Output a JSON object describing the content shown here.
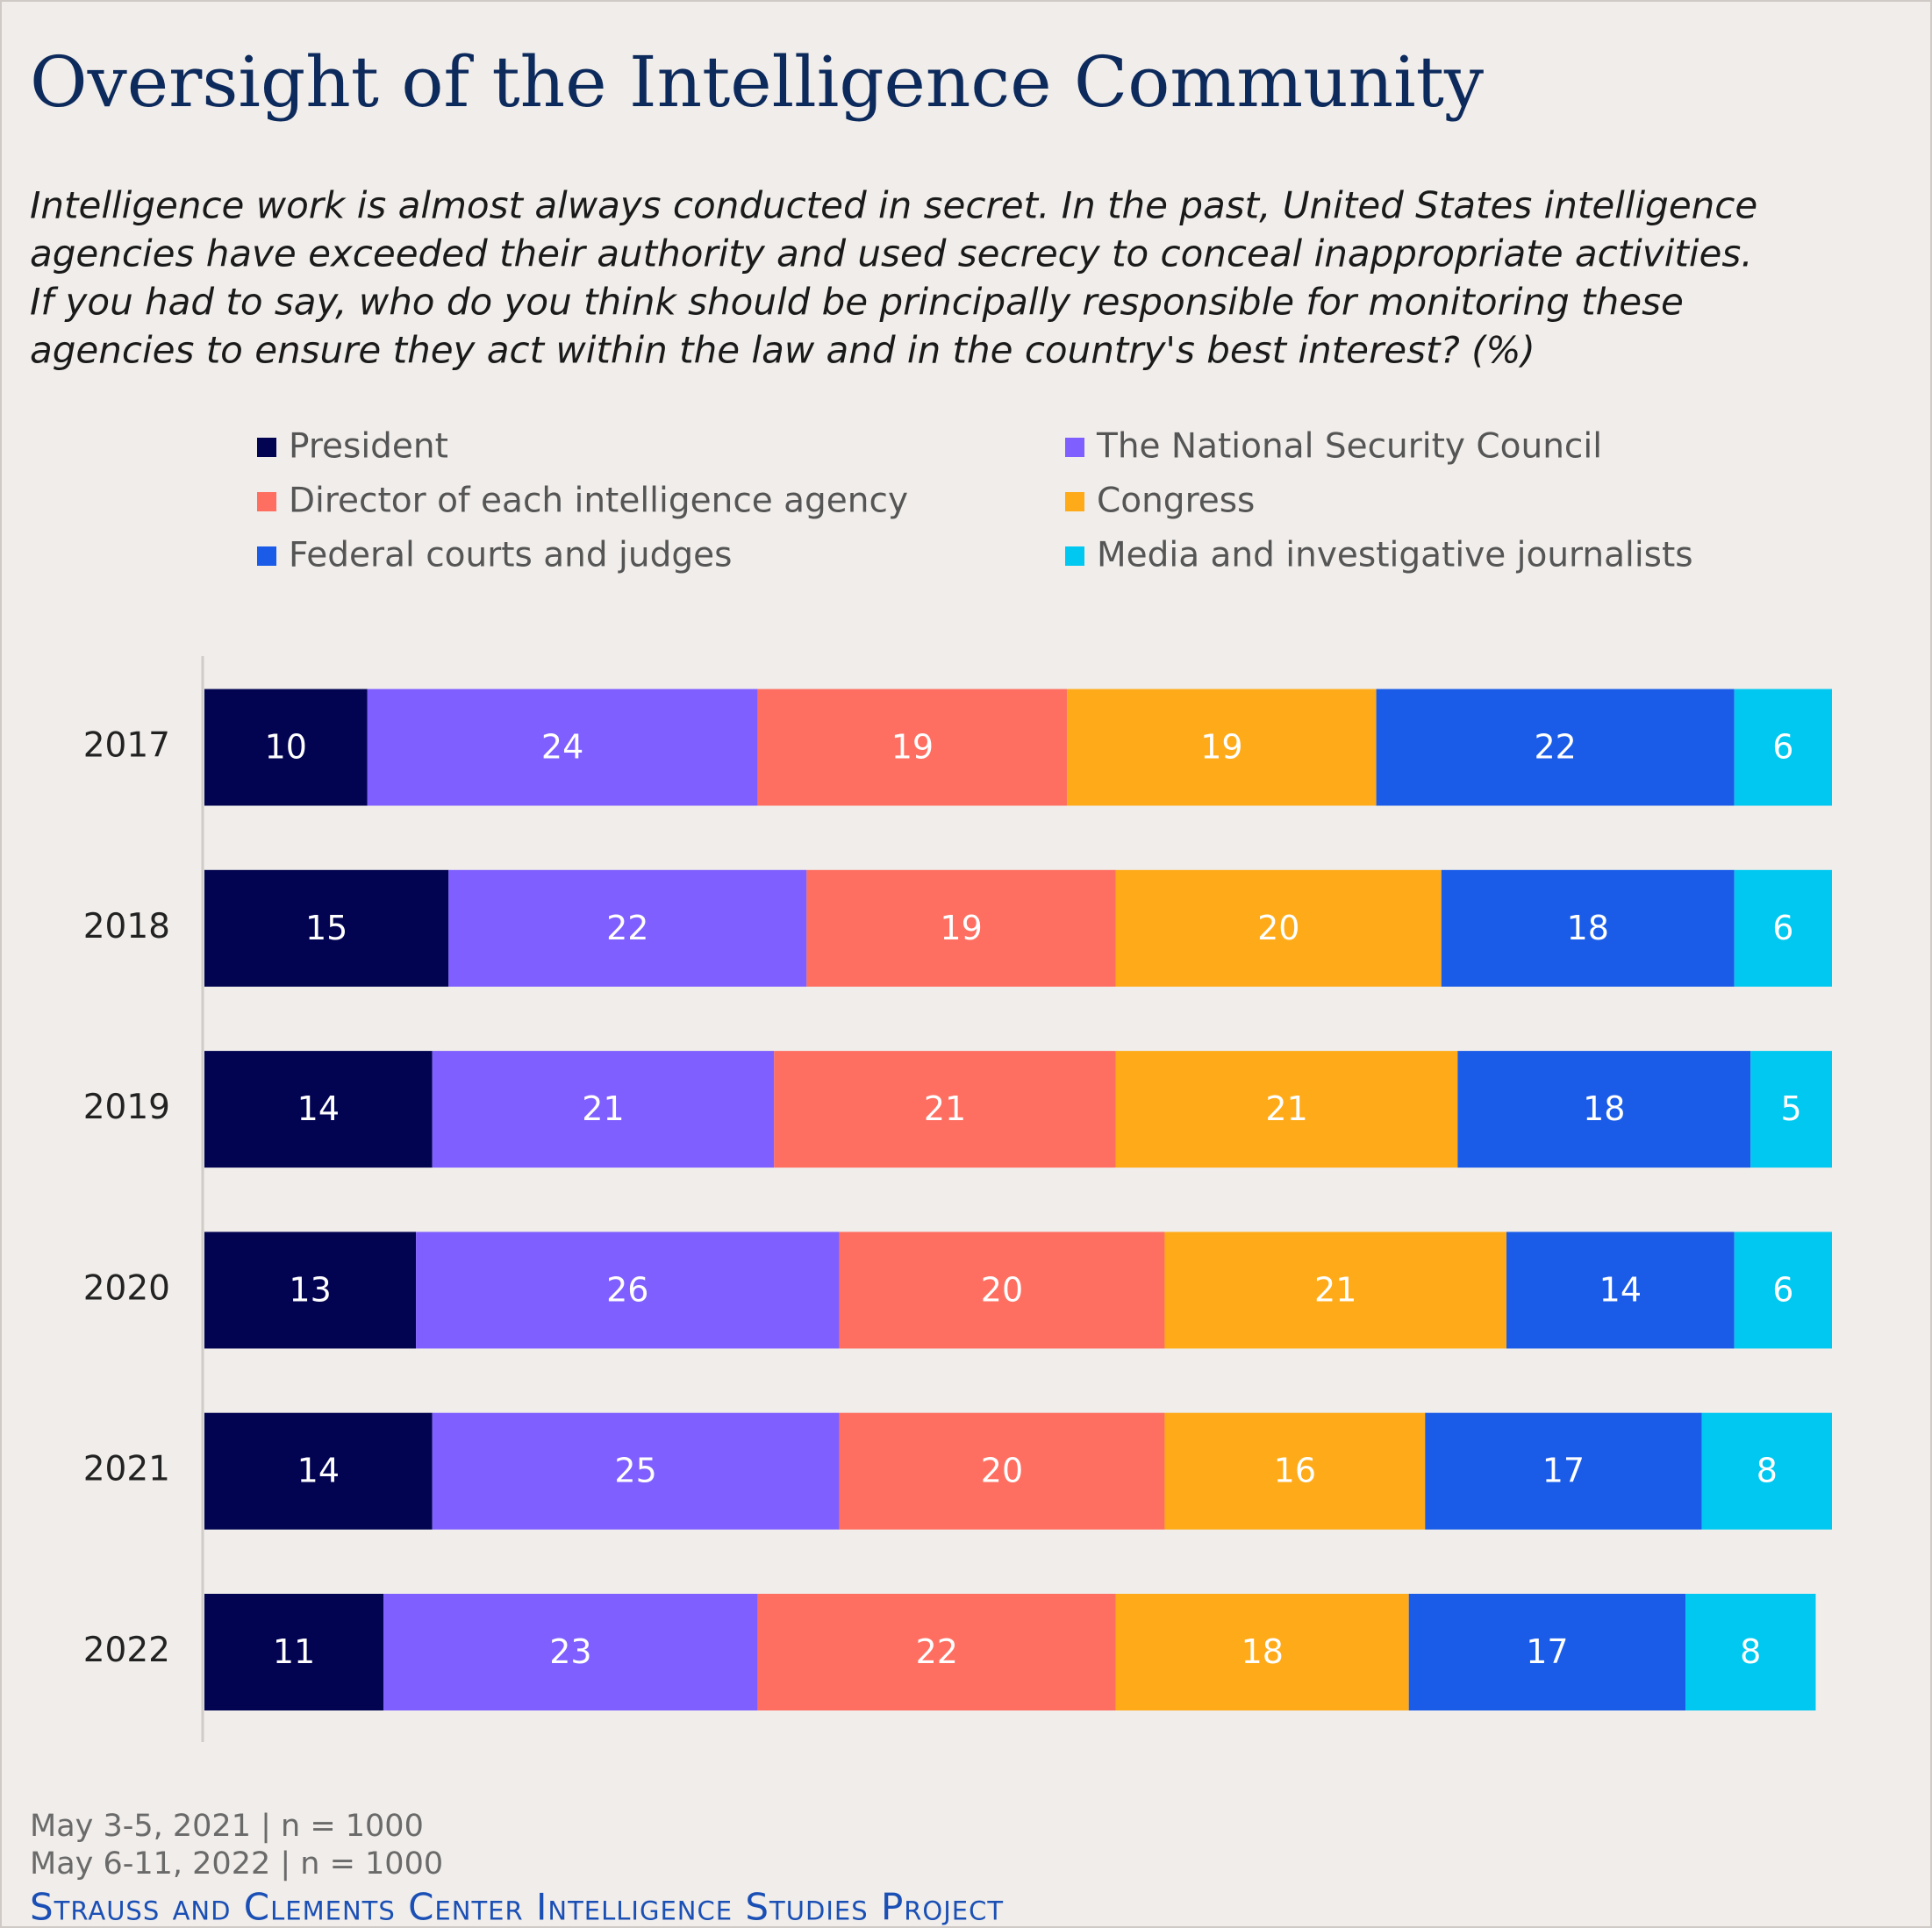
{
  "chart_data": {
    "type": "stacked_barh",
    "title": "Oversight of the Intelligence Community",
    "subtitle": [
      "Intelligence work is almost always conducted in secret. In the past, United States intelligence",
      "agencies have exceeded their authority and used secrecy to conceal inappropriate activities.",
      "If you had to say, who do you think should be principally responsible for monitoring these",
      "agencies to ensure they act within the law and in the country's best interest? (%)"
    ],
    "categories": [
      "2017",
      "2018",
      "2019",
      "2020",
      "2021",
      "2022"
    ],
    "series": [
      {
        "name": "President",
        "color": "#020452",
        "values": [
          10,
          15,
          14,
          13,
          14,
          11
        ]
      },
      {
        "name": "The National Security Council",
        "color": "#7f5fff",
        "values": [
          24,
          22,
          21,
          26,
          25,
          23
        ]
      },
      {
        "name": "Director of each intelligence agency",
        "color": "#ff6f61",
        "values": [
          19,
          19,
          21,
          20,
          20,
          22
        ]
      },
      {
        "name": "Congress",
        "color": "#ffab19",
        "values": [
          19,
          20,
          21,
          21,
          16,
          18
        ]
      },
      {
        "name": "Federal courts and judges",
        "color": "#1a5ce8",
        "values": [
          22,
          18,
          18,
          14,
          17,
          17
        ]
      },
      {
        "name": "Media and investigative journalists",
        "color": "#00c8f0",
        "values": [
          6,
          6,
          5,
          6,
          8,
          8
        ]
      }
    ],
    "xlim": [
      0,
      100
    ],
    "notes": [
      "May 3-5, 2021 | n = 1000",
      "May 6-11, 2022 | n = 1000"
    ],
    "source": "Strauss and Clements Center Intelligence Studies Project"
  }
}
